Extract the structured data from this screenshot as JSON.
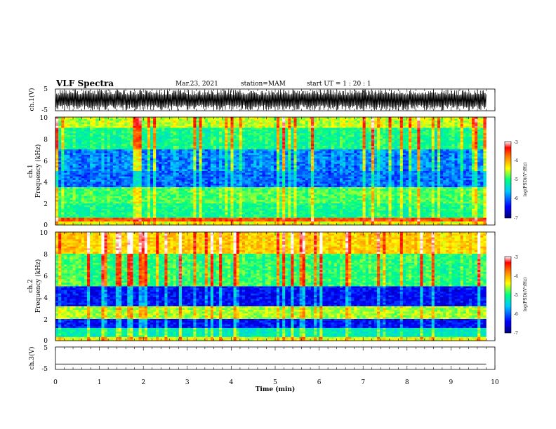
{
  "header": {
    "title": "VLF Spectra",
    "date": "Mar.23, 2021",
    "station": "station=MAM",
    "start": "start UT = 1 : 20 : 1"
  },
  "colors": {
    "colormap": [
      "#00007a",
      "#0000ff",
      "#00c8ff",
      "#00ff80",
      "#ffff00",
      "#ff8000",
      "#ff0000",
      "#ffffff"
    ],
    "axis": "#000000",
    "waveform": "#000000"
  },
  "chart_data": [
    {
      "type": "line",
      "panel": "ch1-waveform",
      "ylabel": "ch.1(V)",
      "ylim": [
        -5,
        5
      ],
      "yticks": [
        "5",
        "-5"
      ],
      "xlim": [
        0,
        10
      ],
      "description_values": {
        "x_end_min": 9.8,
        "signal": "dense sferic bursts, amplitude ±5 V"
      }
    },
    {
      "type": "heatmap",
      "panel": "ch1-spectrogram",
      "ylabel": [
        "ch.1",
        "Frequency (kHz)"
      ],
      "ylim": [
        0,
        10
      ],
      "yticks": [
        "10",
        "8",
        "6",
        "4",
        "2",
        "0"
      ],
      "xlim": [
        0,
        9.8
      ],
      "colorbar": {
        "label": "log(PSD)(V²/Hz)",
        "range": [
          -7,
          -3
        ],
        "ticks": [
          "-3",
          "-4",
          "-5",
          "-6",
          "-7"
        ]
      },
      "bands": [
        {
          "f_khz": [
            0,
            0.3
          ],
          "level": 0.55
        },
        {
          "f_khz": [
            0.3,
            0.7
          ],
          "level": 0.75
        },
        {
          "f_khz": [
            0.7,
            2.0
          ],
          "level": 0.4
        },
        {
          "f_khz": [
            2.0,
            3.5
          ],
          "level": 0.45
        },
        {
          "f_khz": [
            3.5,
            7.0
          ],
          "level": 0.2
        },
        {
          "f_khz": [
            7.0,
            9.0
          ],
          "level": 0.38
        },
        {
          "f_khz": [
            9.0,
            10.0
          ],
          "level": 0.5
        }
      ]
    },
    {
      "type": "heatmap",
      "panel": "ch2-spectrogram",
      "ylabel": [
        "ch.2",
        "Frequency (kHz)"
      ],
      "ylim": [
        0,
        10
      ],
      "yticks": [
        "10",
        "8",
        "6",
        "4",
        "2",
        "0"
      ],
      "xlim": [
        0,
        9.8
      ],
      "colorbar": {
        "label": "log(PSD)(V²/Hz)",
        "range": [
          -7,
          -3
        ],
        "ticks": [
          "-3",
          "-4",
          "-5",
          "-6",
          "-7"
        ]
      },
      "bands": [
        {
          "f_khz": [
            0,
            0.3
          ],
          "level": 0.55
        },
        {
          "f_khz": [
            0.3,
            1.2
          ],
          "level": 0.35
        },
        {
          "f_khz": [
            1.2,
            2.0
          ],
          "level": 0.12
        },
        {
          "f_khz": [
            2.0,
            3.2
          ],
          "level": 0.5
        },
        {
          "f_khz": [
            3.2,
            5.0
          ],
          "level": 0.12
        },
        {
          "f_khz": [
            5.0,
            8.0
          ],
          "level": 0.4
        },
        {
          "f_khz": [
            8.0,
            10.0
          ],
          "level": 0.58
        }
      ]
    },
    {
      "type": "line",
      "panel": "ch3-waveform",
      "ylabel": "ch.3(V)",
      "ylim": [
        -5,
        5
      ],
      "yticks": [
        "5",
        "-5"
      ],
      "xlim": [
        0,
        10
      ],
      "x": [
        0,
        9.8
      ],
      "y": [
        -2.6,
        -2.6
      ]
    }
  ],
  "xaxis": {
    "label": "Time (min)",
    "ticks": [
      "0",
      "1",
      "2",
      "3",
      "4",
      "5",
      "6",
      "7",
      "8",
      "9",
      "10"
    ]
  }
}
